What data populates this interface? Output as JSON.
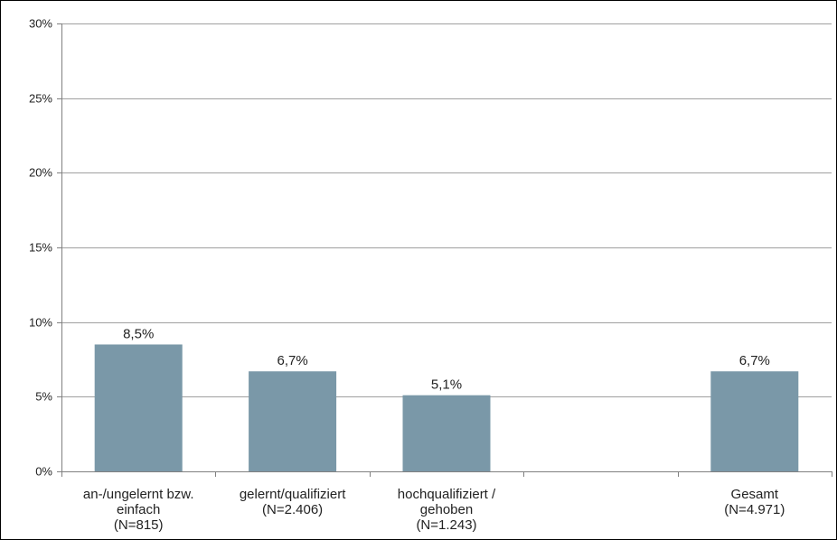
{
  "chart_data": {
    "type": "bar",
    "title": "",
    "xlabel": "",
    "ylabel": "",
    "ylim": [
      0,
      30
    ],
    "y_ticks": [
      "0%",
      "5%",
      "10%",
      "15%",
      "20%",
      "25%",
      "30%"
    ],
    "y_tick_values": [
      0,
      5,
      10,
      15,
      20,
      25,
      30
    ],
    "grid": true,
    "legend": "none",
    "bar_color": "#7a98a8",
    "gridline_color": "#a0a0a0",
    "categories": [
      [
        "an-/ungelernt bzw.",
        "einfach",
        "(N=815)"
      ],
      [
        "gelernt/qualifiziert",
        "(N=2.406)"
      ],
      [
        "hochqualifiziert /",
        "gehoben",
        "(N=1.243)"
      ],
      [],
      [
        "Gesamt",
        "(N=4.971)"
      ]
    ],
    "values": [
      8.5,
      6.7,
      5.1,
      null,
      6.7
    ],
    "data_labels": [
      "8,5%",
      "6,7%",
      "5,1%",
      "",
      "6,7%"
    ]
  }
}
